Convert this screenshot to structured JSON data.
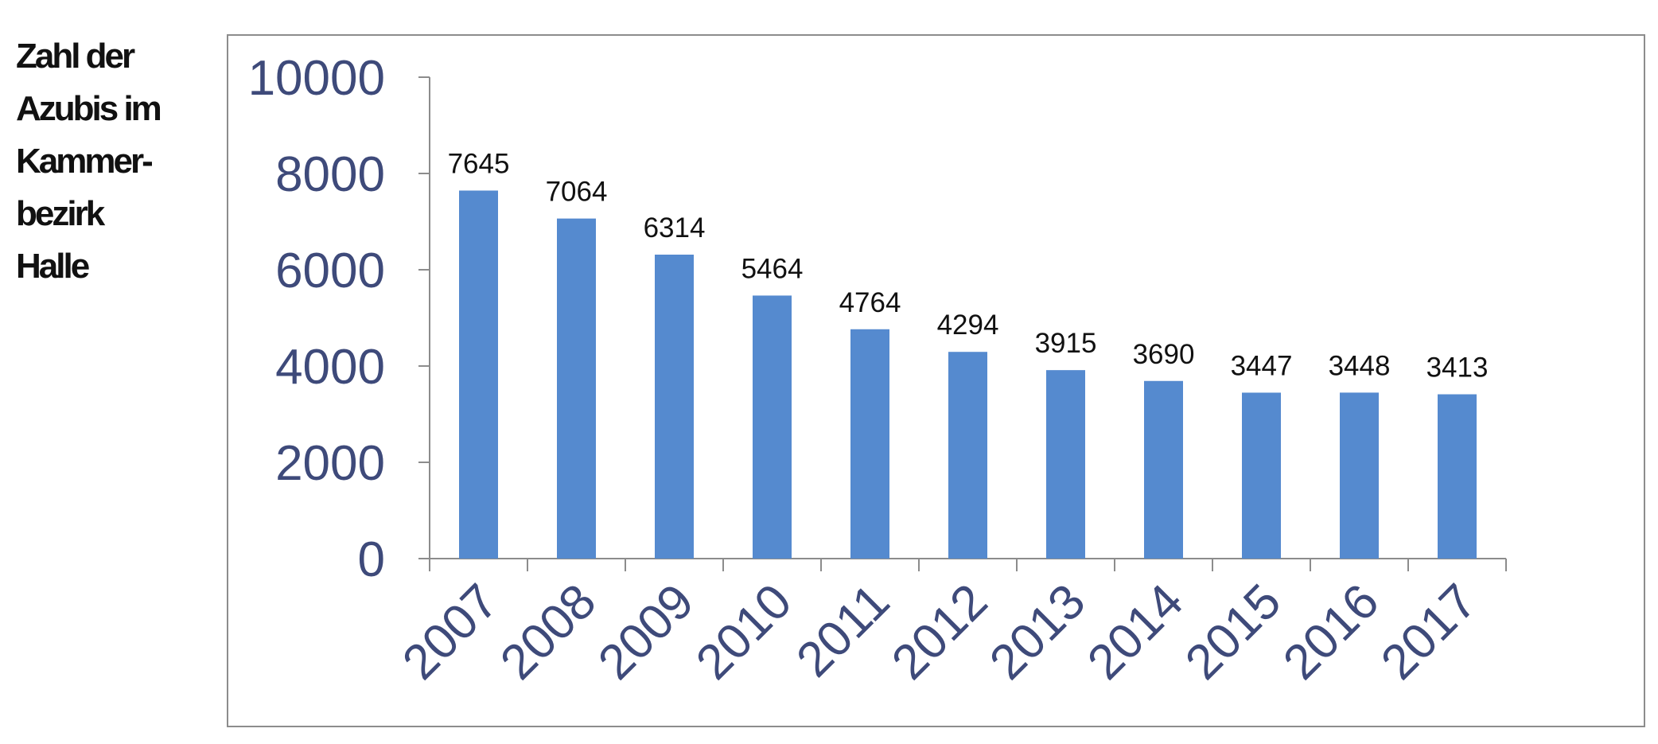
{
  "side_title": {
    "lines": [
      "Zahl der",
      "Azubis im",
      "Kammer-",
      "bezirk",
      "Halle"
    ]
  },
  "chart_data": {
    "type": "bar",
    "title": "Zahl der Azubis im Kammerbezirk Halle",
    "categories": [
      "2007",
      "2008",
      "2009",
      "2010",
      "2011",
      "2012",
      "2013",
      "2014",
      "2015",
      "2016",
      "2017"
    ],
    "values": [
      7645,
      7064,
      6314,
      5464,
      4764,
      4294,
      3915,
      3690,
      3447,
      3448,
      3413
    ],
    "data_labels": true,
    "xlabel": "",
    "ylabel": "",
    "ylim": [
      0,
      10000
    ],
    "yticks": [
      0,
      2000,
      4000,
      6000,
      8000,
      10000
    ],
    "grid": false,
    "legend": "none",
    "colors": {
      "bar": "#558ACF",
      "tick_label": "#3E4A7A",
      "data_label": "#111111",
      "axis": "#8C8C8C",
      "frame": "#8C8C8C"
    }
  }
}
